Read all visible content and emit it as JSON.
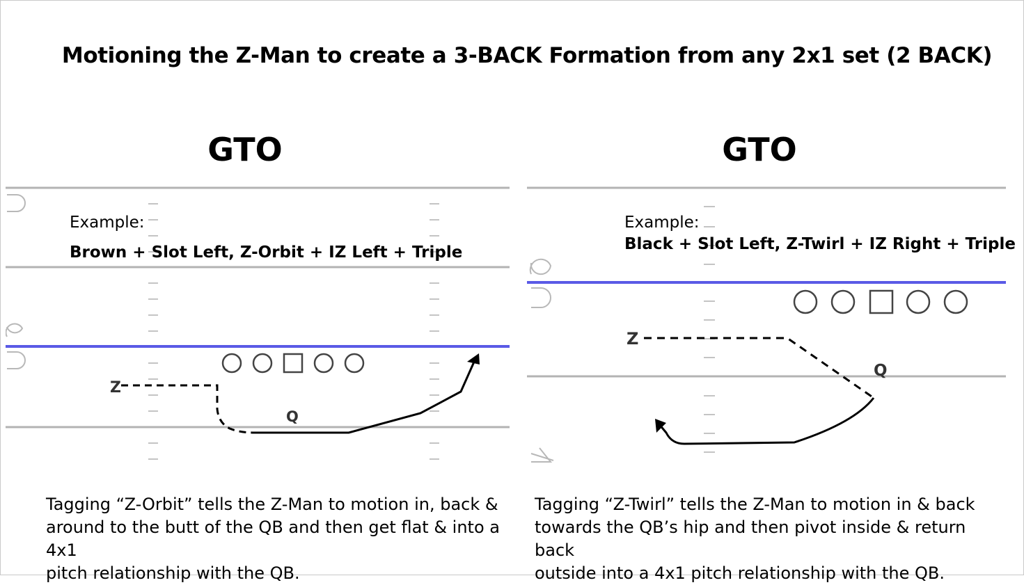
{
  "title": "Motioning the Z-Man to create a 3-BACK Formation from any 2x1 set (2 BACK)",
  "colors": {
    "line_of_scrimmage": "#5a5ae6",
    "yard_line": "#b3b3b3",
    "hash_mark": "#c4c4c4",
    "route": "#000000"
  },
  "panels": [
    {
      "heading": "GTO",
      "example_label": "Example:",
      "play_call": "Brown + Slot Left, Z-Orbit + IZ Left + Triple",
      "players": {
        "motion_man": "Z",
        "quarterback": "Q"
      },
      "description": [
        "Tagging “Z-Orbit” tells the Z-Man to motion in, back &",
        "around to the butt of the QB and then get flat & into a 4x1",
        "pitch relationship with the QB."
      ]
    },
    {
      "heading": "GTO",
      "example_label": "Example:",
      "play_call": "Black + Slot Left, Z-Twirl + IZ Right + Triple",
      "players": {
        "motion_man": "Z",
        "quarterback": "Q"
      },
      "description": [
        "Tagging “Z-Twirl” tells the Z-Man to motion in & back",
        "towards the QB’s hip and then pivot inside & return back",
        "outside into a 4x1 pitch relationship with the QB."
      ]
    }
  ]
}
